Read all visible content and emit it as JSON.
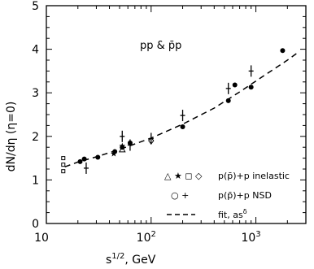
{
  "chart_data": {
    "type": "scatter",
    "title": "",
    "annotation": "pp & p̄p",
    "xlabel": "s^{1/2}, GeV",
    "xlabel_text": "s",
    "xlabel_sup": "1/2",
    "xlabel_unit": ", GeV",
    "ylabel": "dN/dη (η=0)",
    "xscale": "log",
    "xlim": [
      10,
      3000
    ],
    "ylim": [
      0,
      5
    ],
    "x_tick_labels": [
      {
        "value": 10,
        "base": "10",
        "exp": ""
      },
      {
        "value": 100,
        "base": "10",
        "exp": "2"
      },
      {
        "value": 1000,
        "base": "10",
        "exp": "3"
      }
    ],
    "y_ticks": [
      0,
      1,
      2,
      3,
      4,
      5
    ],
    "legend": {
      "position": "lower-right",
      "entries": [
        {
          "symbols": "△ ★ ◻ ◇",
          "label": "p(p̄)+p inelastic",
          "style": "markers"
        },
        {
          "symbols": "○ +",
          "label": "p(p̄)+p NSD",
          "style": "markers"
        },
        {
          "symbols": "",
          "label": "fit,  as^δ",
          "label_base": "fit,  as",
          "label_sup": "δ",
          "style": "dashed"
        }
      ]
    },
    "series": [
      {
        "marker": "circle",
        "points": [
          {
            "x": 21,
            "y": 1.42
          },
          {
            "x": 23,
            "y": 1.48
          },
          {
            "x": 31,
            "y": 1.52
          },
          {
            "x": 45,
            "y": 1.65
          },
          {
            "x": 53,
            "y": 1.75
          },
          {
            "x": 63,
            "y": 1.85
          },
          {
            "x": 200,
            "y": 2.22
          },
          {
            "x": 546,
            "y": 2.82
          },
          {
            "x": 630,
            "y": 3.18
          },
          {
            "x": 900,
            "y": 3.13
          },
          {
            "x": 1800,
            "y": 3.97
          }
        ]
      },
      {
        "marker": "plus",
        "points": [
          {
            "x": 24,
            "y": 1.27
          },
          {
            "x": 53,
            "y": 2.0
          },
          {
            "x": 63,
            "y": 1.8
          },
          {
            "x": 100,
            "y": 1.95
          },
          {
            "x": 200,
            "y": 2.48
          },
          {
            "x": 546,
            "y": 3.1
          },
          {
            "x": 900,
            "y": 3.5
          }
        ]
      },
      {
        "marker": "square",
        "points": [
          {
            "x": 14.5,
            "y": 1.2
          },
          {
            "x": 14.5,
            "y": 1.35
          },
          {
            "x": 14.5,
            "y": 1.5
          }
        ]
      },
      {
        "marker": "triangle",
        "points": [
          {
            "x": 53,
            "y": 1.7
          }
        ]
      },
      {
        "marker": "star",
        "points": [
          {
            "x": 44,
            "y": 1.6
          },
          {
            "x": 53,
            "y": 1.78
          }
        ]
      },
      {
        "marker": "diamond",
        "points": [
          {
            "x": 100,
            "y": 1.9
          }
        ]
      }
    ],
    "fit_curve": [
      {
        "x": 15,
        "y": 1.3
      },
      {
        "x": 20,
        "y": 1.41
      },
      {
        "x": 30,
        "y": 1.53
      },
      {
        "x": 50,
        "y": 1.7
      },
      {
        "x": 100,
        "y": 1.96
      },
      {
        "x": 200,
        "y": 2.28
      },
      {
        "x": 400,
        "y": 2.65
      },
      {
        "x": 700,
        "y": 3.02
      },
      {
        "x": 1000,
        "y": 3.27
      },
      {
        "x": 1500,
        "y": 3.55
      },
      {
        "x": 2000,
        "y": 3.75
      },
      {
        "x": 2500,
        "y": 3.92
      }
    ]
  }
}
